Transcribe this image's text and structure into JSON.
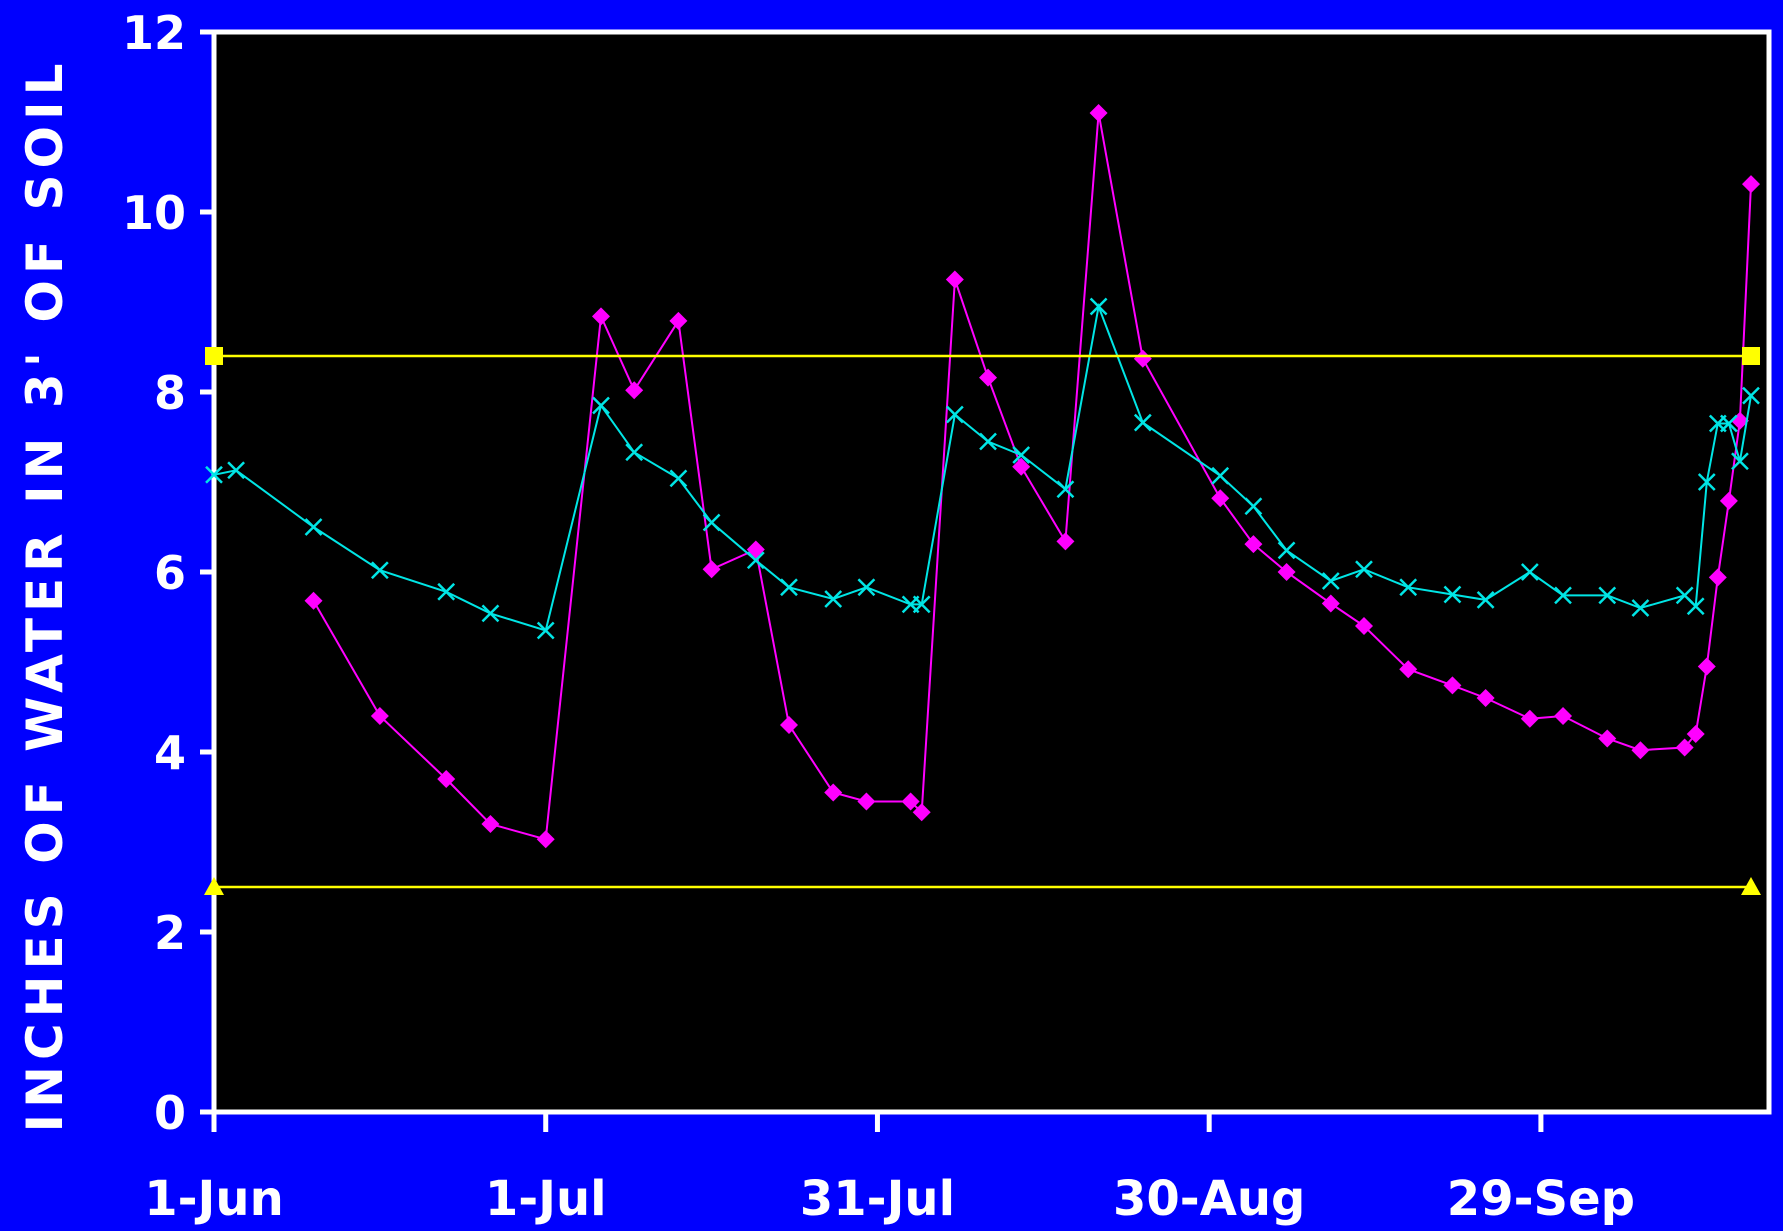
{
  "chart_data": {
    "type": "line",
    "title": "",
    "xlabel": "",
    "ylabel": "INCHES OF WATER IN 3' OF SOIL",
    "ylim": [
      0,
      12
    ],
    "yticks": [
      0,
      2,
      4,
      6,
      8,
      10,
      12
    ],
    "xlim": [
      "2024-06-01",
      "2024-10-18"
    ],
    "xticks": [
      {
        "date": "2024-06-01",
        "label": "1-Jun"
      },
      {
        "date": "2024-07-01",
        "label": "1-Jul"
      },
      {
        "date": "2024-07-31",
        "label": "31-Jul"
      },
      {
        "date": "2024-08-30",
        "label": "30-Aug"
      },
      {
        "date": "2024-09-29",
        "label": "29-Sep"
      }
    ],
    "grid": false,
    "legend": "none",
    "colors": {
      "background": "#0000fe",
      "plot_area": "#000000",
      "axis": "#ffffff",
      "text": "#ffffff"
    },
    "series": [
      {
        "marker": "diamond",
        "color": "#ff00ff",
        "points": [
          [
            "2024-06-10",
            5.68
          ],
          [
            "2024-06-16",
            4.4
          ],
          [
            "2024-06-22",
            3.7
          ],
          [
            "2024-06-26",
            3.2
          ],
          [
            "2024-07-01",
            3.03
          ],
          [
            "2024-07-06",
            8.84
          ],
          [
            "2024-07-09",
            8.02
          ],
          [
            "2024-07-13",
            8.79
          ],
          [
            "2024-07-16",
            6.03
          ],
          [
            "2024-07-20",
            6.25
          ],
          [
            "2024-07-23",
            4.3
          ],
          [
            "2024-07-27",
            3.55
          ],
          [
            "2024-07-30",
            3.45
          ],
          [
            "2024-08-03",
            3.45
          ],
          [
            "2024-08-04",
            3.33
          ],
          [
            "2024-08-07",
            9.25
          ],
          [
            "2024-08-10",
            8.16
          ],
          [
            "2024-08-13",
            7.17
          ],
          [
            "2024-08-17",
            6.34
          ],
          [
            "2024-08-20",
            11.1
          ],
          [
            "2024-08-24",
            8.37
          ],
          [
            "2024-08-31",
            6.82
          ],
          [
            "2024-09-03",
            6.31
          ],
          [
            "2024-09-06",
            6.0
          ],
          [
            "2024-09-10",
            5.65
          ],
          [
            "2024-09-13",
            5.4
          ],
          [
            "2024-09-17",
            4.92
          ],
          [
            "2024-09-21",
            4.74
          ],
          [
            "2024-09-24",
            4.6
          ],
          [
            "2024-09-28",
            4.37
          ],
          [
            "2024-10-01",
            4.4
          ],
          [
            "2024-10-05",
            4.15
          ],
          [
            "2024-10-08",
            4.02
          ],
          [
            "2024-10-12",
            4.05
          ],
          [
            "2024-10-13",
            4.2
          ],
          [
            "2024-10-14",
            4.95
          ],
          [
            "2024-10-15",
            5.94
          ],
          [
            "2024-10-16",
            6.79
          ],
          [
            "2024-10-17",
            7.68
          ],
          [
            "2024-10-18",
            10.31
          ]
        ]
      },
      {
        "marker": "x",
        "color": "#00e5e5",
        "points": [
          [
            "2024-06-01",
            7.08
          ],
          [
            "2024-06-03",
            7.13
          ],
          [
            "2024-06-10",
            6.5
          ],
          [
            "2024-06-16",
            6.02
          ],
          [
            "2024-06-22",
            5.78
          ],
          [
            "2024-06-26",
            5.54
          ],
          [
            "2024-07-01",
            5.35
          ],
          [
            "2024-07-06",
            7.85
          ],
          [
            "2024-07-09",
            7.33
          ],
          [
            "2024-07-13",
            7.04
          ],
          [
            "2024-07-16",
            6.55
          ],
          [
            "2024-07-20",
            6.13
          ],
          [
            "2024-07-23",
            5.83
          ],
          [
            "2024-07-27",
            5.7
          ],
          [
            "2024-07-30",
            5.83
          ],
          [
            "2024-08-03",
            5.64
          ],
          [
            "2024-08-04",
            5.64
          ],
          [
            "2024-08-07",
            7.75
          ],
          [
            "2024-08-10",
            7.45
          ],
          [
            "2024-08-13",
            7.3
          ],
          [
            "2024-08-17",
            6.92
          ],
          [
            "2024-08-20",
            8.95
          ],
          [
            "2024-08-24",
            7.66
          ],
          [
            "2024-08-31",
            7.07
          ],
          [
            "2024-09-03",
            6.73
          ],
          [
            "2024-09-06",
            6.24
          ],
          [
            "2024-09-10",
            5.9
          ],
          [
            "2024-09-13",
            6.03
          ],
          [
            "2024-09-17",
            5.83
          ],
          [
            "2024-09-21",
            5.75
          ],
          [
            "2024-09-24",
            5.69
          ],
          [
            "2024-09-28",
            6.0
          ],
          [
            "2024-10-01",
            5.74
          ],
          [
            "2024-10-05",
            5.74
          ],
          [
            "2024-10-08",
            5.6
          ],
          [
            "2024-10-12",
            5.74
          ],
          [
            "2024-10-13",
            5.62
          ],
          [
            "2024-10-14",
            7.0
          ],
          [
            "2024-10-15",
            7.65
          ],
          [
            "2024-10-16",
            7.65
          ],
          [
            "2024-10-17",
            7.23
          ],
          [
            "2024-10-18",
            7.96
          ]
        ]
      },
      {
        "marker": "square",
        "color": "#ffff00",
        "points": [
          [
            "2024-06-01",
            8.4
          ],
          [
            "2024-10-18",
            8.4
          ]
        ]
      },
      {
        "marker": "triangle",
        "color": "#ffff00",
        "points": [
          [
            "2024-06-01",
            2.5
          ],
          [
            "2024-10-18",
            2.5
          ]
        ]
      }
    ]
  }
}
